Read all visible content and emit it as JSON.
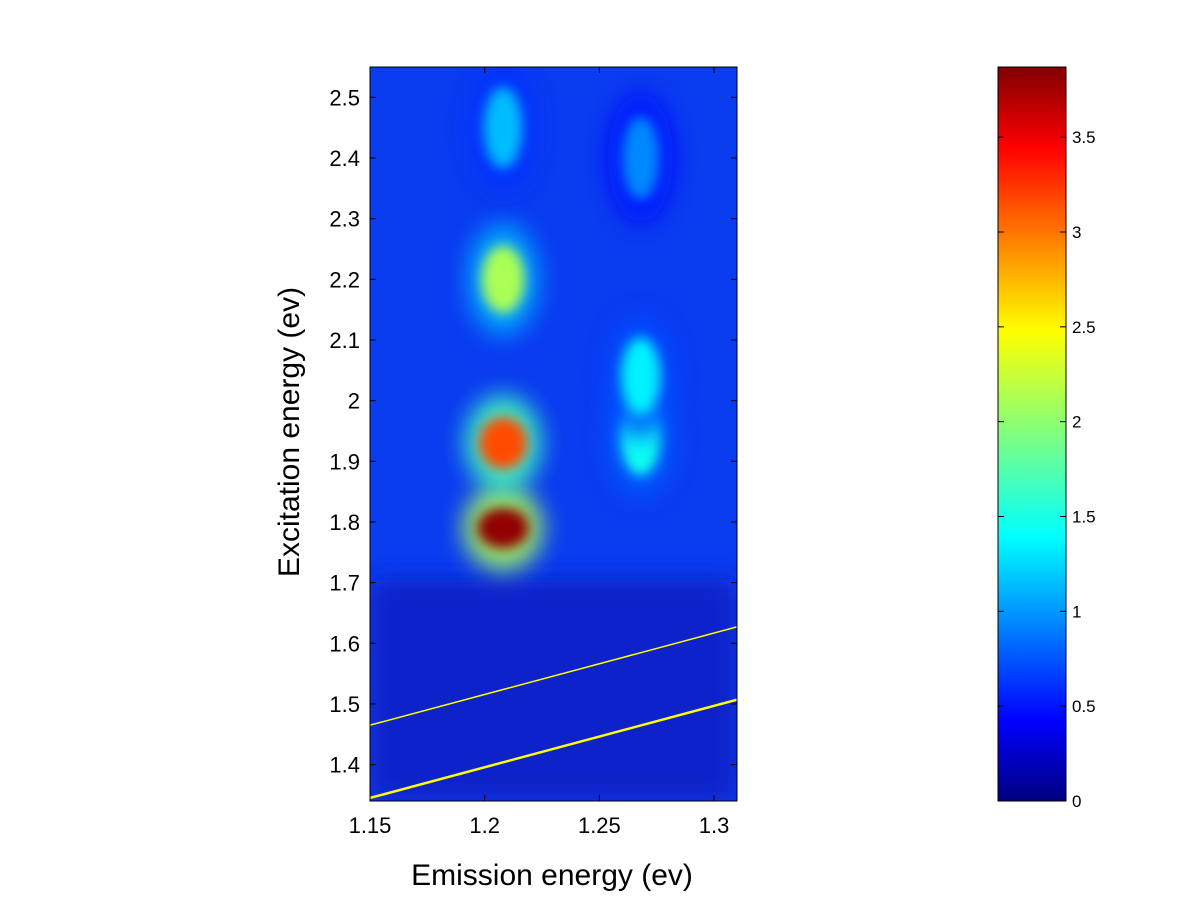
{
  "chart_data": {
    "type": "heatmap",
    "xlabel": "Emission energy (ev)",
    "ylabel": "Excitation energy (ev)",
    "xlim": [
      1.15,
      1.31
    ],
    "ylim": [
      1.34,
      2.55
    ],
    "x_ticks": [
      "1.15",
      "1.2",
      "1.25",
      "1.3"
    ],
    "x_tick_values": [
      1.15,
      1.2,
      1.25,
      1.3
    ],
    "y_ticks": [
      "1.4",
      "1.5",
      "1.6",
      "1.7",
      "1.8",
      "1.9",
      "2",
      "2.1",
      "2.2",
      "2.3",
      "2.4",
      "2.5"
    ],
    "y_tick_values": [
      1.4,
      1.5,
      1.6,
      1.7,
      1.8,
      1.9,
      2.0,
      2.1,
      2.2,
      2.3,
      2.4,
      2.5
    ],
    "colormap": "jet",
    "colorbar": {
      "range": [
        0,
        3.87
      ],
      "ticks": [
        "0",
        "0.5",
        "1",
        "1.5",
        "2",
        "2.5",
        "3",
        "3.5"
      ],
      "tick_values": [
        0,
        0.5,
        1,
        1.5,
        2,
        2.5,
        3,
        3.5
      ]
    },
    "features": [
      {
        "x": 1.208,
        "y": 1.79,
        "intensity": 3.8
      },
      {
        "x": 1.208,
        "y": 1.93,
        "intensity": 3.1
      },
      {
        "x": 1.208,
        "y": 2.2,
        "intensity": 2.1
      },
      {
        "x": 1.208,
        "y": 2.45,
        "intensity": 1.2
      },
      {
        "x": 1.268,
        "y": 1.94,
        "intensity": 1.5
      },
      {
        "x": 1.268,
        "y": 2.04,
        "intensity": 1.4
      },
      {
        "x": 1.268,
        "y": 2.4,
        "intensity": 1.0
      }
    ],
    "overlay_lines": [
      {
        "color": "#ffff00",
        "x": [
          1.15,
          1.31
        ],
        "y": [
          1.465,
          1.627
        ]
      },
      {
        "color": "#ffff00",
        "x": [
          1.15,
          1.31
        ],
        "y": [
          1.345,
          1.507
        ]
      }
    ],
    "grid": false
  }
}
